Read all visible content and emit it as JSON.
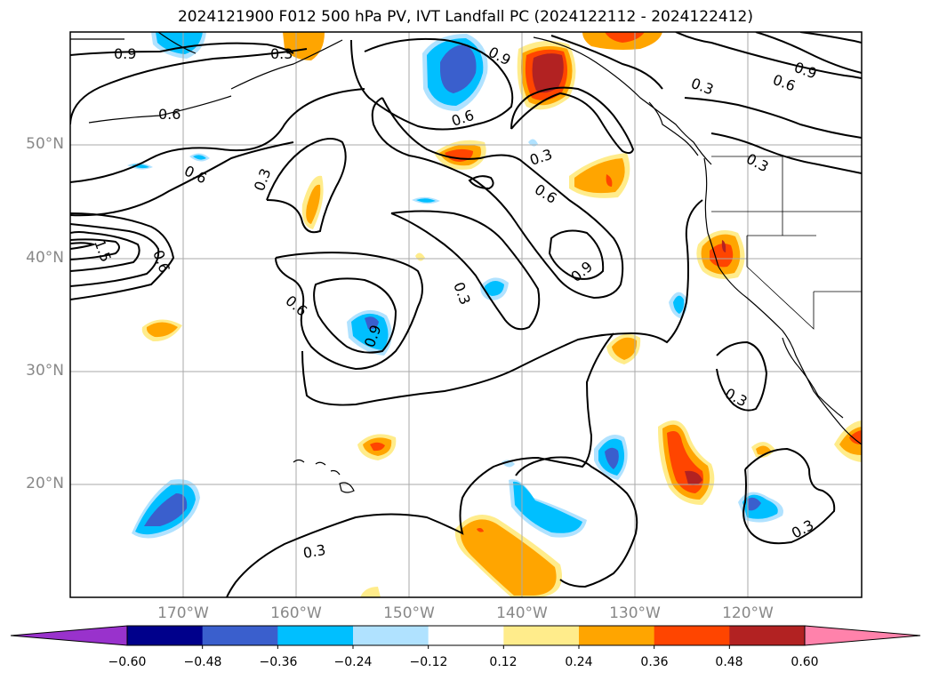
{
  "title": "2024121900 F012 500 hPa PV, IVT Landfall PC (2024122112 - 2024122412)",
  "map": {
    "lat_labels": [
      {
        "lat": 50,
        "text": "50°N"
      },
      {
        "lat": 40,
        "text": "40°N"
      },
      {
        "lat": 30,
        "text": "30°N"
      },
      {
        "lat": 20,
        "text": "20°N"
      }
    ],
    "lon_labels": [
      {
        "lon": -170,
        "text": "170°W"
      },
      {
        "lon": -160,
        "text": "160°W"
      },
      {
        "lon": -150,
        "text": "150°W"
      },
      {
        "lon": -140,
        "text": "140°W"
      },
      {
        "lon": -130,
        "text": "130°W"
      },
      {
        "lon": -120,
        "text": "120°W"
      }
    ],
    "contour_labels": [
      "0.9",
      "0.3",
      "0.6",
      "0.9",
      "0.3",
      "0.9",
      "0.6",
      "0.6",
      "0.6",
      "0.3",
      "0.3",
      "0.3",
      "0.6",
      "0.9",
      "0.3",
      "0.6",
      "0.9",
      "0.3",
      "0.3",
      "0.3",
      "1.5",
      "0.6"
    ]
  },
  "colorbar": {
    "ticks": [
      "−0.60",
      "−0.48",
      "−0.36",
      "−0.24",
      "−0.12",
      "0.12",
      "0.24",
      "0.36",
      "0.48",
      "0.60"
    ],
    "colors": [
      "#9932cc",
      "#00008b",
      "#3a5fcd",
      "#00bfff",
      "#b0e2ff",
      "#ffffff",
      "#ffec8b",
      "#ffa500",
      "#ff4500",
      "#b22222",
      "#ff82ab"
    ]
  }
}
